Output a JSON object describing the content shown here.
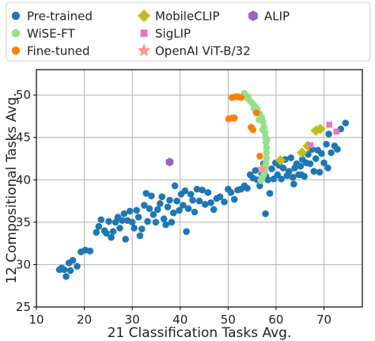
{
  "chart_data": {
    "type": "scatter",
    "xlabel": "21 Classification Tasks Avg.",
    "ylabel": "12 Compositional Tasks Avg.",
    "xlim": [
      10,
      78
    ],
    "ylim": [
      25,
      53
    ],
    "xticks": [
      10,
      20,
      30,
      40,
      50,
      60,
      70
    ],
    "yticks": [
      25,
      30,
      35,
      40,
      45,
      50
    ],
    "grid": true,
    "legend": {
      "placement": "top",
      "columns": 3
    },
    "series": [
      {
        "name": "Pre-trained",
        "marker": "circle",
        "color": "#1f77b4",
        "points": [
          [
            14.8,
            29.4
          ],
          [
            15.3,
            29.6
          ],
          [
            15.8,
            29.4
          ],
          [
            16.2,
            28.6
          ],
          [
            16.8,
            30.2
          ],
          [
            17.1,
            29.3
          ],
          [
            17.6,
            30.5
          ],
          [
            18.5,
            29.8
          ],
          [
            19.3,
            31.5
          ],
          [
            20.2,
            31.7
          ],
          [
            21.2,
            31.6
          ],
          [
            22.5,
            33.8
          ],
          [
            23.0,
            34.5
          ],
          [
            23.5,
            35.3
          ],
          [
            24.2,
            34.0
          ],
          [
            24.6,
            33.7
          ],
          [
            25.1,
            35.1
          ],
          [
            25.6,
            33.2
          ],
          [
            26.0,
            33.9
          ],
          [
            26.5,
            35.0
          ],
          [
            27.0,
            35.6
          ],
          [
            27.4,
            34.3
          ],
          [
            27.9,
            35.2
          ],
          [
            28.3,
            36.0
          ],
          [
            28.6,
            33.0
          ],
          [
            29.0,
            35.2
          ],
          [
            29.5,
            36.3
          ],
          [
            30.0,
            35.0
          ],
          [
            30.4,
            34.3
          ],
          [
            30.9,
            36.4
          ],
          [
            31.3,
            35.6
          ],
          [
            31.6,
            33.4
          ],
          [
            32.0,
            34.2
          ],
          [
            32.5,
            37.0
          ],
          [
            32.9,
            38.4
          ],
          [
            33.2,
            35.1
          ],
          [
            33.6,
            36.6
          ],
          [
            34.0,
            38.1
          ],
          [
            34.4,
            35.9
          ],
          [
            34.9,
            35.0
          ],
          [
            35.3,
            36.5
          ],
          [
            35.8,
            37.2
          ],
          [
            36.2,
            38.0
          ],
          [
            36.6,
            35.4
          ],
          [
            37.0,
            34.7
          ],
          [
            37.4,
            36.8
          ],
          [
            37.8,
            37.6
          ],
          [
            38.2,
            35.0
          ],
          [
            38.6,
            36.1
          ],
          [
            38.9,
            39.3
          ],
          [
            39.3,
            37.5
          ],
          [
            39.8,
            36.4
          ],
          [
            40.2,
            38.3
          ],
          [
            40.6,
            37.0
          ],
          [
            41.0,
            38.7
          ],
          [
            41.3,
            33.9
          ],
          [
            41.7,
            36.6
          ],
          [
            42.2,
            38.3
          ],
          [
            42.6,
            37.6
          ],
          [
            43.0,
            36.2
          ],
          [
            43.5,
            38.9
          ],
          [
            44.0,
            37.5
          ],
          [
            44.6,
            38.8
          ],
          [
            45.2,
            37.1
          ],
          [
            45.8,
            38.5
          ],
          [
            46.4,
            37.3
          ],
          [
            47.0,
            36.5
          ],
          [
            47.6,
            37.8
          ],
          [
            48.3,
            38.0
          ],
          [
            49.2,
            37.4
          ],
          [
            50.0,
            38.9
          ],
          [
            50.6,
            38.5
          ],
          [
            51.3,
            37.7
          ],
          [
            52.0,
            38.8
          ],
          [
            52.7,
            38.9
          ],
          [
            53.4,
            39.3
          ],
          [
            54.0,
            39.0
          ],
          [
            54.6,
            40.6
          ],
          [
            55.2,
            40.2
          ],
          [
            55.7,
            41.1
          ],
          [
            56.1,
            40.0
          ],
          [
            56.6,
            39.3
          ],
          [
            57.0,
            40.8
          ],
          [
            57.4,
            41.9
          ],
          [
            57.9,
            40.4
          ],
          [
            58.3,
            40.0
          ],
          [
            58.7,
            38.4
          ],
          [
            59.1,
            41.3
          ],
          [
            59.5,
            40.1
          ],
          [
            59.9,
            42.0
          ],
          [
            60.3,
            40.6
          ],
          [
            60.7,
            41.7
          ],
          [
            61.1,
            40.1
          ],
          [
            61.5,
            41.4
          ],
          [
            61.9,
            42.4
          ],
          [
            62.3,
            40.5
          ],
          [
            62.7,
            41.0
          ],
          [
            63.1,
            42.6
          ],
          [
            63.5,
            40.3
          ],
          [
            63.9,
            41.4
          ],
          [
            64.3,
            41.9
          ],
          [
            64.7,
            40.6
          ],
          [
            65.1,
            41.6
          ],
          [
            65.5,
            42.4
          ],
          [
            65.9,
            40.4
          ],
          [
            66.3,
            42.0
          ],
          [
            66.7,
            43.0
          ],
          [
            67.1,
            41.9
          ],
          [
            67.5,
            43.6
          ],
          [
            67.9,
            41.0
          ],
          [
            68.3,
            42.5
          ],
          [
            68.7,
            43.5
          ],
          [
            69.1,
            40.9
          ],
          [
            69.5,
            43.1
          ],
          [
            70.0,
            42.0
          ],
          [
            70.5,
            44.2
          ],
          [
            71.0,
            45.4
          ],
          [
            71.5,
            43.2
          ],
          [
            72.2,
            44.0
          ],
          [
            72.8,
            43.6
          ],
          [
            73.5,
            46.0
          ],
          [
            74.5,
            46.7
          ],
          [
            57.8,
            36.0
          ],
          [
            63.7,
            39.5
          ],
          [
            65.3,
            40.6
          ],
          [
            70.8,
            41.4
          ]
        ]
      },
      {
        "name": "WiSE-FT",
        "marker": "circle",
        "color": "#98df8a",
        "points": [
          [
            53.4,
            50.2
          ],
          [
            54.0,
            49.6
          ],
          [
            54.6,
            49.3
          ],
          [
            55.1,
            49.0
          ],
          [
            55.6,
            48.7
          ],
          [
            56.1,
            48.3
          ],
          [
            56.6,
            47.8
          ],
          [
            57.0,
            47.3
          ],
          [
            57.3,
            46.8
          ],
          [
            57.5,
            46.2
          ],
          [
            57.7,
            45.6
          ],
          [
            57.8,
            45.0
          ],
          [
            57.9,
            44.4
          ],
          [
            58.0,
            43.8
          ],
          [
            58.0,
            43.2
          ],
          [
            58.0,
            42.6
          ],
          [
            57.9,
            42.0
          ],
          [
            57.8,
            41.5
          ],
          [
            57.6,
            41.0
          ],
          [
            57.4,
            40.6
          ],
          [
            57.1,
            40.2
          ],
          [
            56.8,
            39.9
          ],
          [
            54.2,
            49.8
          ],
          [
            55.4,
            48.4
          ],
          [
            56.4,
            47.1
          ],
          [
            57.2,
            45.9
          ],
          [
            58.1,
            44.7
          ]
        ]
      },
      {
        "name": "Fine-tuned",
        "marker": "circle",
        "color": "#ff7f0e",
        "points": [
          [
            50.8,
            49.7
          ],
          [
            51.5,
            49.8
          ],
          [
            52.1,
            49.8
          ],
          [
            52.7,
            49.7
          ],
          [
            50.1,
            47.2
          ],
          [
            50.8,
            47.3
          ],
          [
            51.3,
            47.3
          ],
          [
            55.9,
            47.9
          ],
          [
            54.8,
            46.2
          ],
          [
            55.2,
            45.9
          ],
          [
            56.6,
            42.8
          ]
        ]
      },
      {
        "name": "MobileCLIP",
        "marker": "diamond",
        "color": "#bcbd22",
        "points": [
          [
            60.9,
            42.3
          ],
          [
            65.4,
            43.2
          ],
          [
            66.6,
            44.0
          ],
          [
            68.3,
            45.8
          ],
          [
            69.2,
            46.0
          ]
        ]
      },
      {
        "name": "SigLIP",
        "marker": "square",
        "color": "#e377c2",
        "points": [
          [
            67.2,
            44.1
          ],
          [
            71.1,
            46.5
          ],
          [
            72.6,
            45.7
          ]
        ]
      },
      {
        "name": "OpenAI ViT-B/32",
        "marker": "star",
        "color": "#ff9896",
        "points": [
          [
            57.0,
            41.3
          ]
        ]
      },
      {
        "name": "ALIP",
        "marker": "hexagon",
        "color": "#9467bd",
        "points": [
          [
            37.8,
            42.1
          ]
        ]
      }
    ]
  }
}
